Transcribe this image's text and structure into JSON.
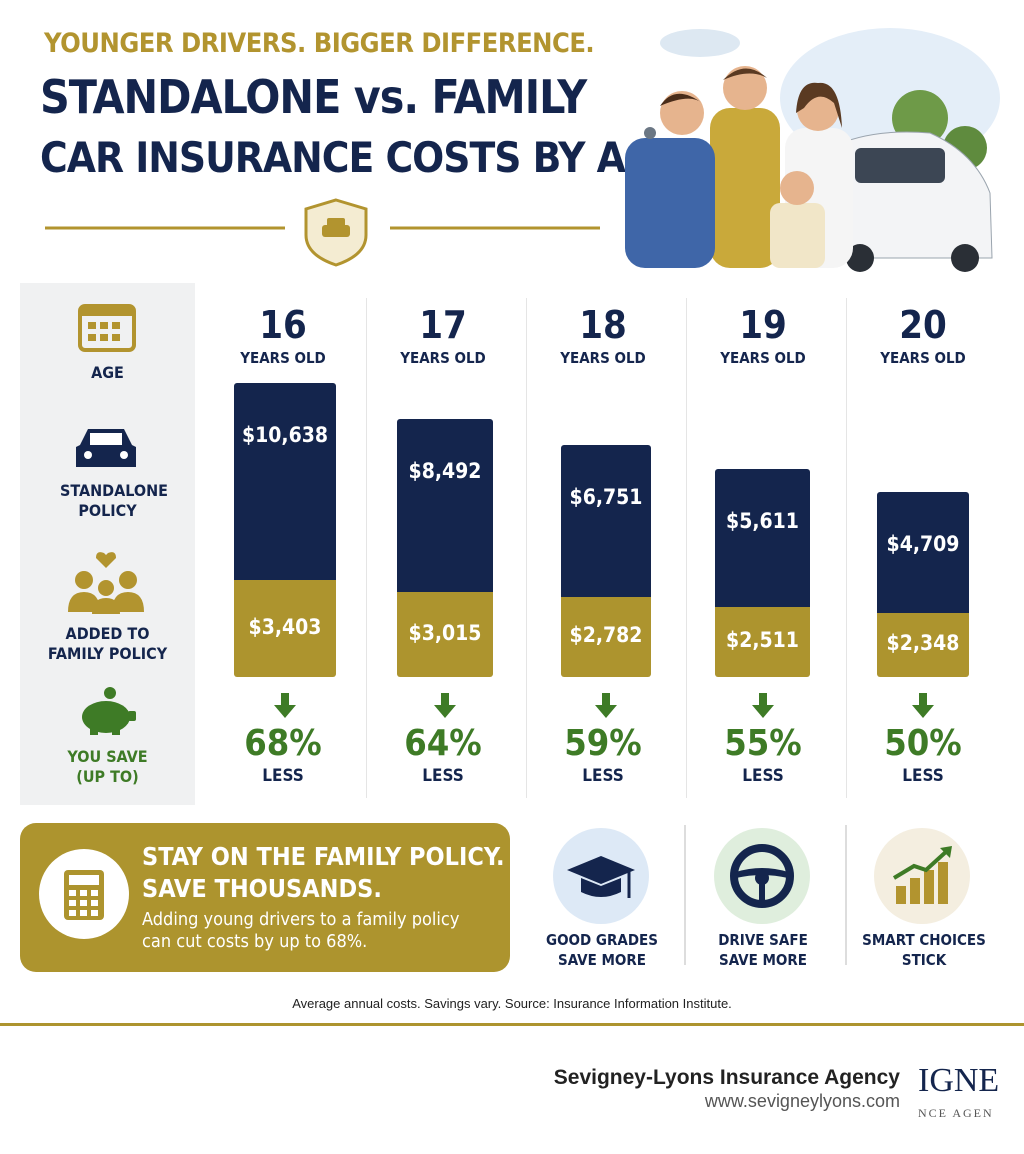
{
  "header": {
    "kicker": "YOUNGER DRIVERS. BIGGER DIFFERENCE.",
    "title_line1": "STANDALONE vs. FAMILY",
    "title_line2": "CAR INSURANCE COSTS BY AGE"
  },
  "row_labels": {
    "age": "AGE",
    "standalone": "STANDALONE POLICY",
    "family": "ADDED TO FAMILY POLICY",
    "save": "YOU SAVE (UP TO)"
  },
  "columns": [
    {
      "age": "16",
      "age_unit": "YEARS OLD",
      "standalone": "$10,638",
      "family": "$3,403",
      "savings": "68%",
      "savings_label": "LESS"
    },
    {
      "age": "17",
      "age_unit": "YEARS OLD",
      "standalone": "$8,492",
      "family": "$3,015",
      "savings": "64%",
      "savings_label": "LESS"
    },
    {
      "age": "18",
      "age_unit": "YEARS OLD",
      "standalone": "$6,751",
      "family": "$2,782",
      "savings": "59%",
      "savings_label": "LESS"
    },
    {
      "age": "19",
      "age_unit": "YEARS OLD",
      "standalone": "$5,611",
      "family": "$2,511",
      "savings": "55%",
      "savings_label": "LESS"
    },
    {
      "age": "20",
      "age_unit": "YEARS OLD",
      "standalone": "$4,709",
      "family": "$2,348",
      "savings": "50%",
      "savings_label": "LESS"
    }
  ],
  "banner": {
    "headline1": "STAY ON THE FAMILY POLICY.",
    "headline2": "SAVE THOUSANDS.",
    "text": "Adding young drivers to a family policy can cut costs by up to 68%."
  },
  "tips": [
    {
      "line1": "GOOD GRADES",
      "line2": "SAVE MORE"
    },
    {
      "line1": "DRIVE SAFE",
      "line2": "SAVE MORE"
    },
    {
      "line1": "SMART CHOICES",
      "line2": "STICK"
    }
  ],
  "footnote": "Average annual costs. Savings vary.  Source: Insurance Information Institute.",
  "footer": {
    "agency": "Sevigney-Lyons Insurance Agency",
    "url": "www.sevigneylyons.com",
    "logo_line1": "IGNE",
    "logo_line2": "NCE AGEN"
  }
}
